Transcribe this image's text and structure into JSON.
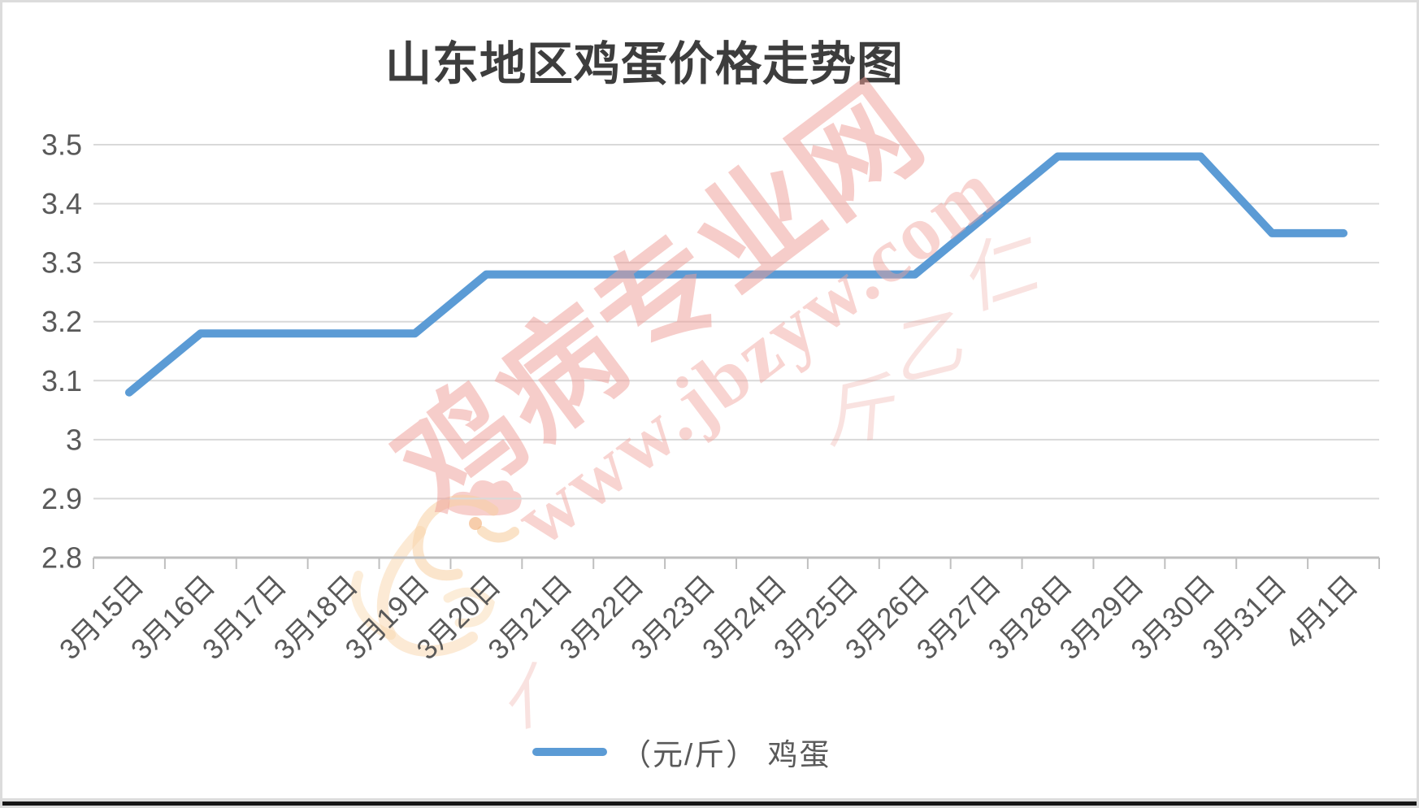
{
  "title": "山东地区鸡蛋价格走势图",
  "legend": {
    "label": "（元/斤） 鸡蛋"
  },
  "watermark": {
    "brand": "鸡病专业网",
    "url": "www.jbzyw.com",
    "script_marks": [
      "仁",
      "乙",
      "斤",
      "亻"
    ]
  },
  "colors": {
    "line": "#5b9bd5",
    "grid": "#d9d9d9",
    "axis": "#bfbfbf",
    "text": "#595959",
    "title": "#3d3d3d",
    "watermark_pink": "#ef9d96",
    "bird_orange": "#f7cfa2",
    "bird_comb": "#f0a8a2"
  },
  "chart_data": {
    "type": "line",
    "title": "山东地区鸡蛋价格走势图",
    "categories": [
      "3月15日",
      "3月16日",
      "3月17日",
      "3月18日",
      "3月19日",
      "3月20日",
      "3月21日",
      "3月22日",
      "3月23日",
      "3月24日",
      "3月25日",
      "3月26日",
      "3月27日",
      "3月28日",
      "3月29日",
      "3月30日",
      "3月31日",
      "4月1日"
    ],
    "series": [
      {
        "name": "（元/斤） 鸡蛋",
        "values": [
          3.08,
          3.18,
          3.18,
          3.18,
          3.18,
          3.28,
          3.28,
          3.28,
          3.28,
          3.28,
          3.28,
          3.28,
          3.38,
          3.48,
          3.48,
          3.48,
          3.35,
          3.35
        ]
      }
    ],
    "xlabel": "",
    "ylabel": "",
    "ylim": [
      2.8,
      3.5
    ],
    "ytick_values": [
      2.8,
      2.9,
      3.0,
      3.1,
      3.2,
      3.3,
      3.4,
      3.5
    ],
    "ytick_labels": [
      "2.8",
      "2.9",
      "3",
      "3.1",
      "3.2",
      "3.3",
      "3.4",
      "3.5"
    ],
    "grid": true,
    "legend_position": "bottom",
    "x_axis_label_rotation_deg": 45
  }
}
